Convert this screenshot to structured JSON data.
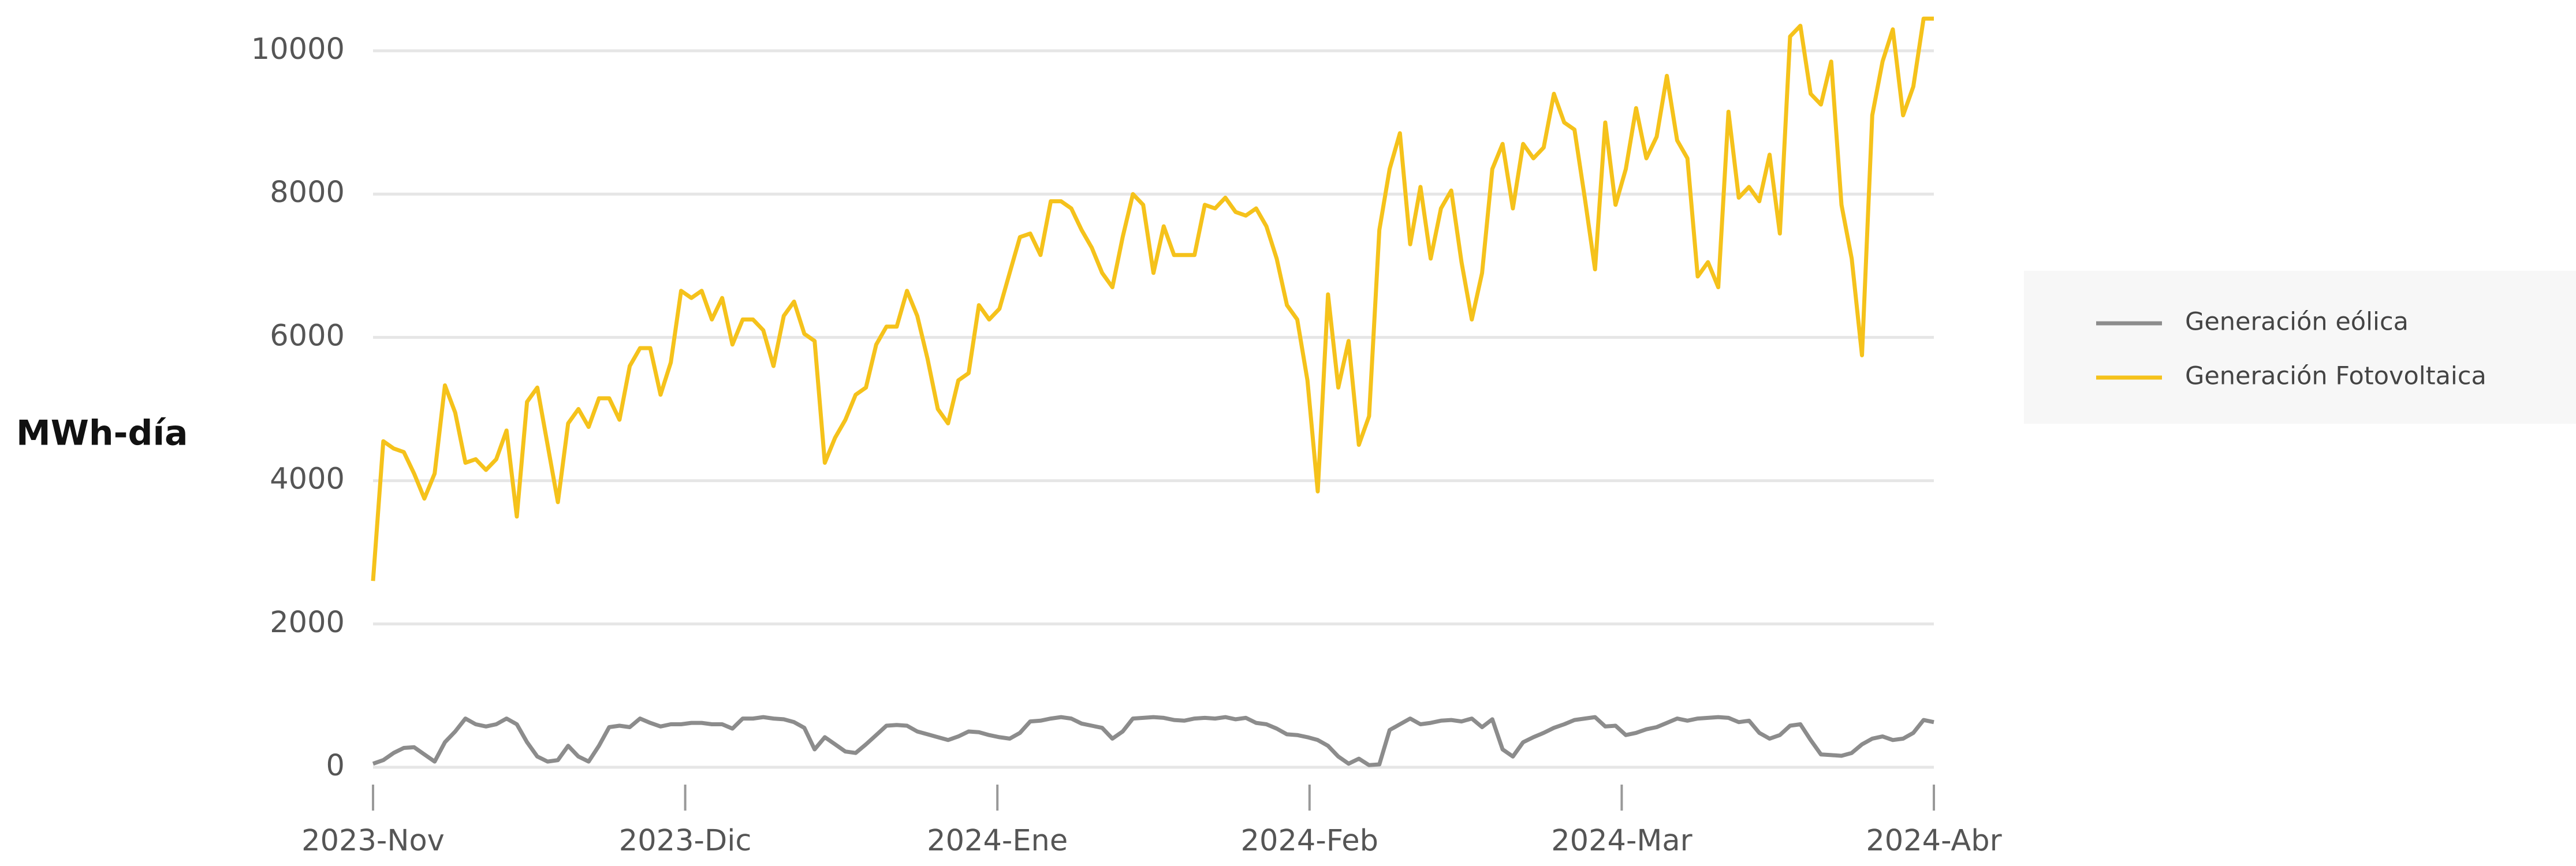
{
  "chart_data": {
    "type": "line",
    "y_label": "MWh-día",
    "xticks": [
      "2023-Nov",
      "2023-Dic",
      "2024-Ene",
      "2024-Feb",
      "2024-Mar",
      "2024-Abr"
    ],
    "ylim": [
      0,
      10000
    ],
    "yticks": [
      0,
      2000,
      4000,
      6000,
      8000,
      10000
    ],
    "grid": true,
    "legend": "right",
    "series": [
      {
        "name": "Generación eólica",
        "color": "#8c8c8c",
        "values": [
          50,
          100,
          200,
          270,
          280,
          180,
          80,
          350,
          500,
          680,
          600,
          570,
          600,
          680,
          600,
          350,
          150,
          80,
          100,
          300,
          150,
          80,
          300,
          560,
          580,
          560,
          680,
          620,
          570,
          600,
          600,
          620,
          620,
          600,
          600,
          540,
          680,
          680,
          700,
          680,
          670,
          630,
          550,
          250,
          420,
          320,
          220,
          200,
          320,
          450,
          580,
          590,
          580,
          500,
          460,
          420,
          380,
          430,
          500,
          490,
          450,
          420,
          400,
          480,
          640,
          650,
          680,
          700,
          680,
          610,
          580,
          550,
          400,
          500,
          680,
          690,
          700,
          690,
          660,
          650,
          680,
          690,
          680,
          700,
          670,
          690,
          620,
          600,
          540,
          460,
          450,
          420,
          380,
          300,
          150,
          50,
          120,
          30,
          40,
          520,
          600,
          680,
          600,
          620,
          650,
          660,
          640,
          680,
          560,
          670,
          250,
          150,
          350,
          420,
          480,
          550,
          600,
          660,
          680,
          700,
          570,
          580,
          450,
          480,
          530,
          560,
          620,
          680,
          650,
          680,
          690,
          700,
          690,
          630,
          650,
          480,
          400,
          450,
          580,
          600,
          380,
          180,
          170,
          160,
          200,
          320,
          400,
          430,
          380,
          400,
          480,
          660,
          630
        ]
      },
      {
        "name": "Generación Fotovoltaica",
        "color": "#f5c21b",
        "values": [
          2600,
          4550,
          4450,
          4400,
          4100,
          3750,
          4100,
          5330,
          4950,
          4250,
          4300,
          4150,
          4300,
          4700,
          3500,
          5100,
          5300,
          4500,
          3700,
          4800,
          5000,
          4750,
          5150,
          5150,
          4850,
          5600,
          5850,
          5850,
          5200,
          5650,
          6650,
          6550,
          6650,
          6250,
          6550,
          5900,
          6250,
          6250,
          6100,
          5600,
          6300,
          6500,
          6050,
          5950,
          4250,
          4600,
          4850,
          5200,
          5300,
          5900,
          6150,
          6150,
          6650,
          6300,
          5700,
          5000,
          4800,
          5400,
          5500,
          6450,
          6250,
          6400,
          6900,
          7400,
          7450,
          7150,
          7900,
          7900,
          7800,
          7500,
          7250,
          6900,
          6700,
          7400,
          8000,
          7850,
          6900,
          7550,
          7150,
          7150,
          7150,
          7850,
          7800,
          7950,
          7750,
          7700,
          7800,
          7550,
          7100,
          6450,
          6250,
          5400,
          3850,
          6600,
          5300,
          5950,
          4500,
          4900,
          7500,
          8350,
          8850,
          7300,
          8100,
          7100,
          7800,
          8050,
          7050,
          6250,
          6900,
          8350,
          8700,
          7800,
          8700,
          8500,
          8650,
          9400,
          9000,
          8900,
          7950,
          6950,
          9000,
          7850,
          8350,
          9200,
          8500,
          8800,
          9650,
          8750,
          8500,
          6850,
          7050,
          6700,
          9150,
          7950,
          8100,
          7900,
          8550,
          7450,
          10200,
          10350,
          9400,
          9250,
          9850,
          7850,
          7100,
          5750,
          9100,
          9850,
          10300,
          9100,
          9500,
          10450,
          10450
        ]
      }
    ]
  }
}
